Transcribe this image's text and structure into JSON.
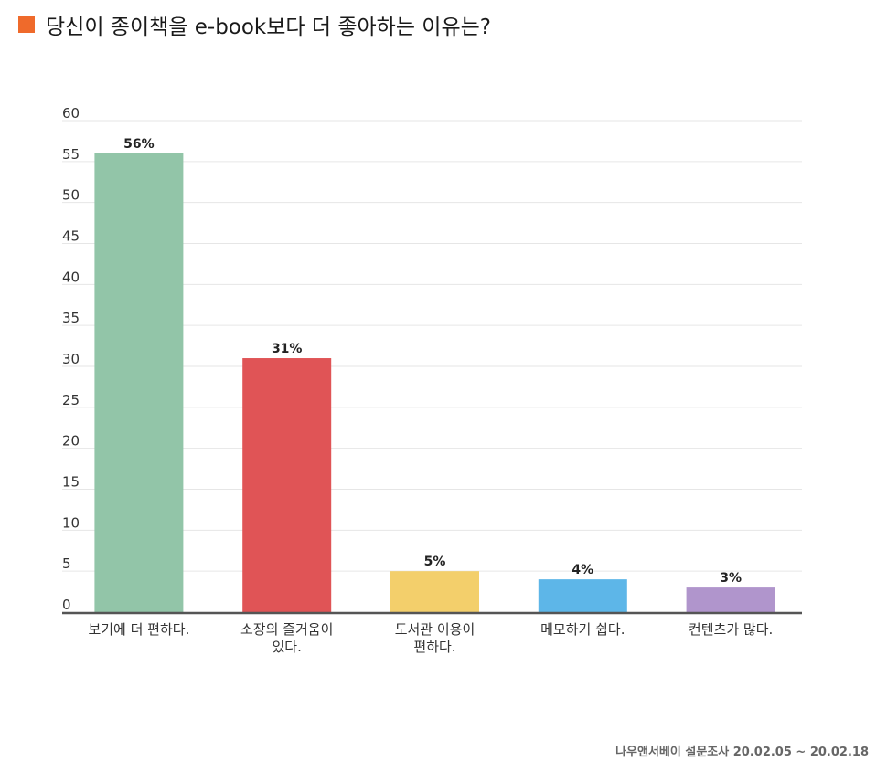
{
  "title": "당신이 종이책을 e-book보다 더 좋아하는 이유는?",
  "accent_color": "#ef6a2b",
  "source": "나우앤서베이 설문조사 20.02.05 ~ 20.02.18",
  "chart_data": {
    "type": "bar",
    "categories": [
      [
        "보기에 더 편하다."
      ],
      [
        "소장의 즐거움이",
        "있다."
      ],
      [
        "도서관 이용이",
        "편하다."
      ],
      [
        "메모하기 쉽다."
      ],
      [
        "컨텐츠가 많다."
      ]
    ],
    "values": [
      56,
      31,
      5,
      4,
      3
    ],
    "data_labels": [
      "56%",
      "31%",
      "5%",
      "4%",
      "3%"
    ],
    "colors": [
      "#92c5a8",
      "#e05456",
      "#f3cf6b",
      "#5db6e8",
      "#b095cc"
    ],
    "yticks": [
      0,
      5,
      10,
      15,
      20,
      25,
      30,
      35,
      40,
      45,
      50,
      55,
      60
    ],
    "ylim": [
      0,
      60
    ],
    "grid": true,
    "legend": "none"
  }
}
